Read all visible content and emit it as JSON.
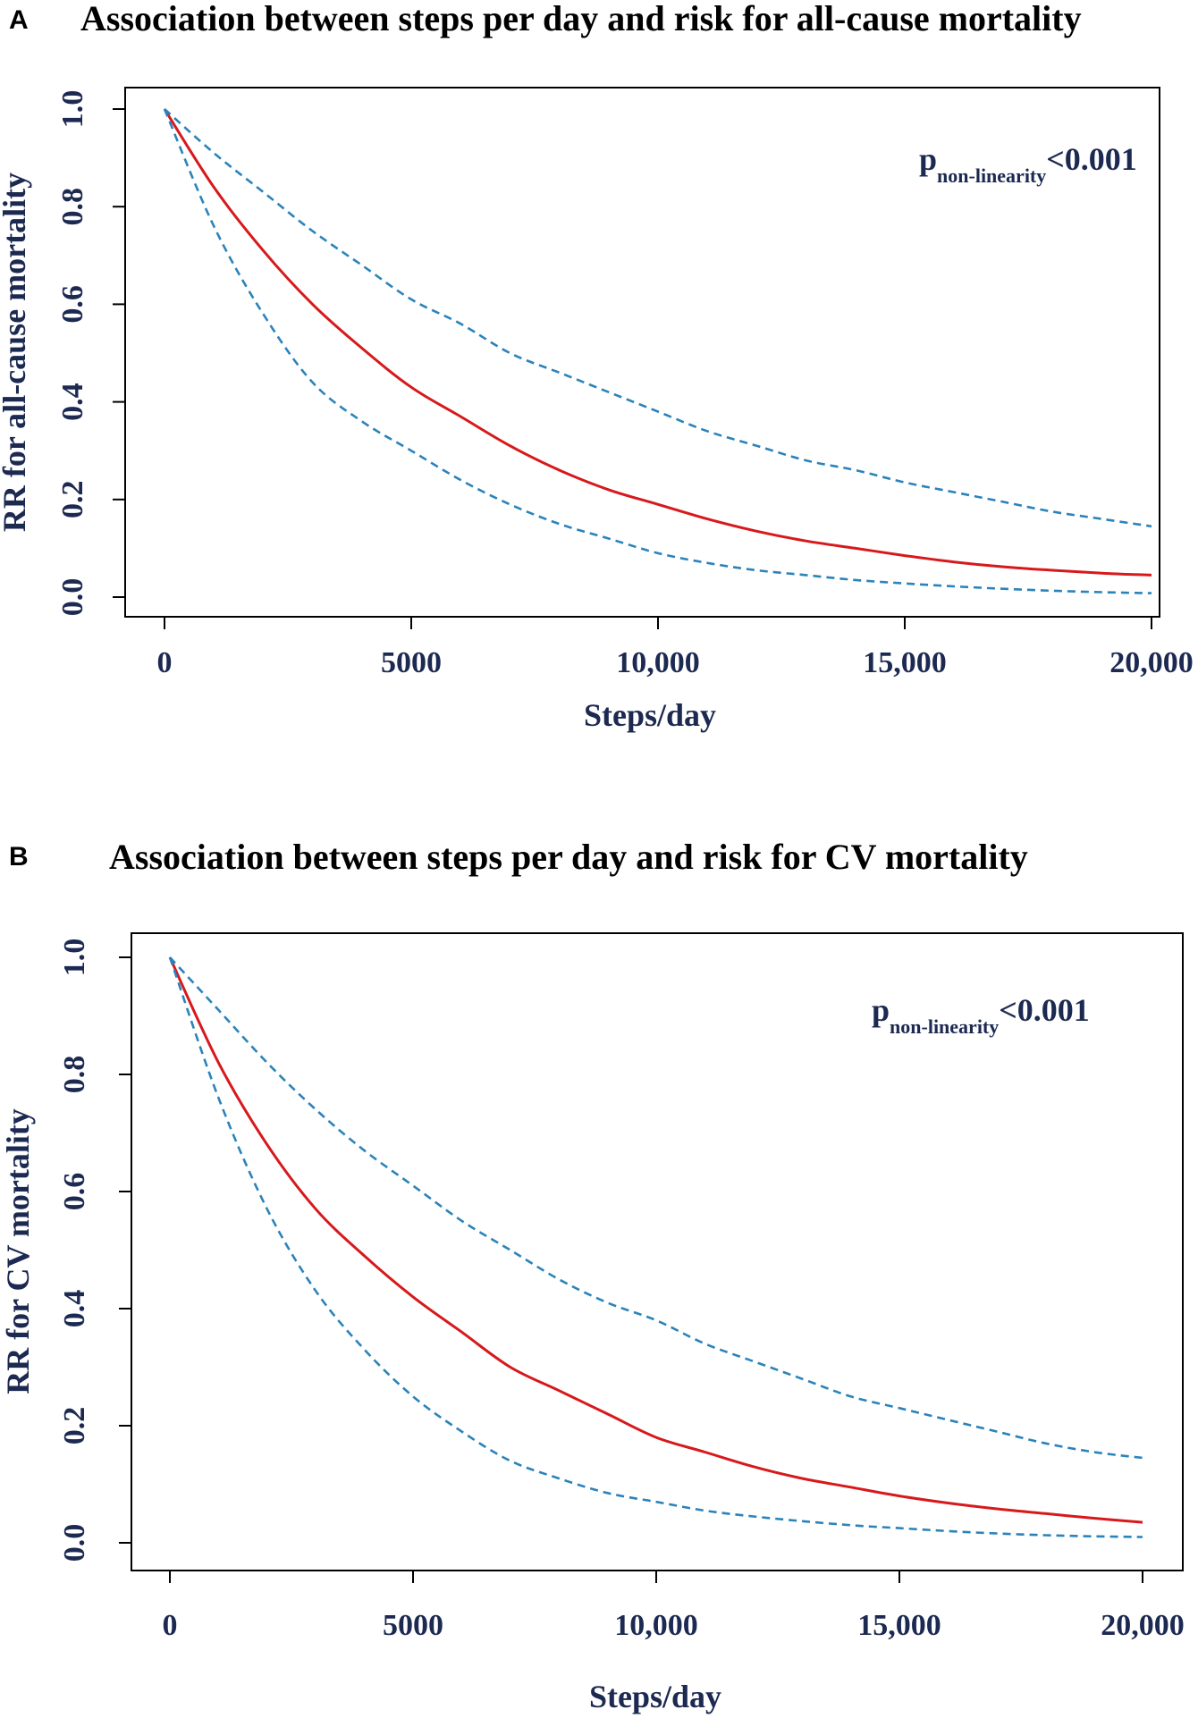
{
  "panels": [
    {
      "letter": "A",
      "annotation": {
        "main": "p",
        "sub": "non-linearity",
        "tail": "<0.001"
      }
    },
    {
      "letter": "B",
      "annotation": {
        "main": "p",
        "sub": "non-linearity",
        "tail": "<0.001"
      }
    }
  ],
  "colors": {
    "estimate": "#d7191c",
    "ci": "#2b83ba",
    "text": "#1c2951"
  },
  "chart_data": [
    {
      "type": "line",
      "title": "Association between steps per day and risk for all-cause mortality",
      "xlabel": "Steps/day",
      "ylabel": "RR for all-cause mortality",
      "xlim": [
        0,
        20000
      ],
      "ylim": [
        0,
        1.0
      ],
      "xticks": [
        0,
        5000,
        10000,
        15000,
        20000
      ],
      "xtick_labels": [
        "0",
        "5000",
        "10,000",
        "15,000",
        "20,000"
      ],
      "yticks": [
        0,
        0.2,
        0.4,
        0.6,
        0.8,
        1.0
      ],
      "ytick_labels": [
        "0.0",
        "0.2",
        "0.4",
        "0.6",
        "0.8",
        "1.0"
      ],
      "x": [
        0,
        1000,
        2000,
        3000,
        4000,
        5000,
        6000,
        7000,
        8000,
        9000,
        10000,
        11000,
        12000,
        13000,
        14000,
        15000,
        16000,
        17000,
        18000,
        19000,
        20000
      ],
      "series": [
        {
          "role": "estimate",
          "values": [
            1.0,
            0.84,
            0.71,
            0.6,
            0.51,
            0.43,
            0.37,
            0.31,
            0.26,
            0.22,
            0.19,
            0.16,
            0.135,
            0.115,
            0.1,
            0.085,
            0.072,
            0.062,
            0.055,
            0.049,
            0.045
          ]
        },
        {
          "role": "upper",
          "values": [
            1.0,
            0.91,
            0.83,
            0.75,
            0.68,
            0.61,
            0.56,
            0.5,
            0.46,
            0.42,
            0.38,
            0.34,
            0.31,
            0.28,
            0.26,
            0.235,
            0.215,
            0.195,
            0.175,
            0.16,
            0.145
          ]
        },
        {
          "role": "lower",
          "values": [
            1.0,
            0.76,
            0.58,
            0.44,
            0.36,
            0.3,
            0.24,
            0.19,
            0.15,
            0.12,
            0.09,
            0.07,
            0.055,
            0.045,
            0.035,
            0.028,
            0.022,
            0.017,
            0.013,
            0.01,
            0.008
          ]
        }
      ]
    },
    {
      "type": "line",
      "title": "Association between steps per day and risk for CV mortality",
      "xlabel": "Steps/day",
      "ylabel": "RR for CV mortality",
      "xlim": [
        0,
        20000
      ],
      "ylim": [
        0,
        1.0
      ],
      "xticks": [
        0,
        5000,
        10000,
        15000,
        20000
      ],
      "xtick_labels": [
        "0",
        "5000",
        "10,000",
        "15,000",
        "20,000"
      ],
      "yticks": [
        0,
        0.2,
        0.4,
        0.6,
        0.8,
        1.0
      ],
      "ytick_labels": [
        "0.0",
        "0.2",
        "0.4",
        "0.6",
        "0.8",
        "1.0"
      ],
      "x": [
        0,
        1000,
        2000,
        3000,
        4000,
        5000,
        6000,
        7000,
        8000,
        9000,
        10000,
        11000,
        12000,
        13000,
        14000,
        15000,
        16000,
        17000,
        18000,
        19000,
        20000
      ],
      "series": [
        {
          "role": "estimate",
          "values": [
            1.0,
            0.82,
            0.68,
            0.57,
            0.49,
            0.42,
            0.36,
            0.3,
            0.26,
            0.22,
            0.18,
            0.155,
            0.13,
            0.11,
            0.095,
            0.08,
            0.068,
            0.058,
            0.05,
            0.042,
            0.035
          ]
        },
        {
          "role": "upper",
          "values": [
            1.0,
            0.91,
            0.82,
            0.74,
            0.67,
            0.61,
            0.55,
            0.5,
            0.45,
            0.41,
            0.38,
            0.34,
            0.31,
            0.28,
            0.25,
            0.23,
            0.21,
            0.19,
            0.17,
            0.155,
            0.145
          ]
        },
        {
          "role": "lower",
          "values": [
            1.0,
            0.76,
            0.57,
            0.43,
            0.33,
            0.25,
            0.19,
            0.14,
            0.11,
            0.085,
            0.07,
            0.055,
            0.045,
            0.037,
            0.03,
            0.025,
            0.02,
            0.016,
            0.013,
            0.011,
            0.01
          ]
        }
      ]
    }
  ]
}
